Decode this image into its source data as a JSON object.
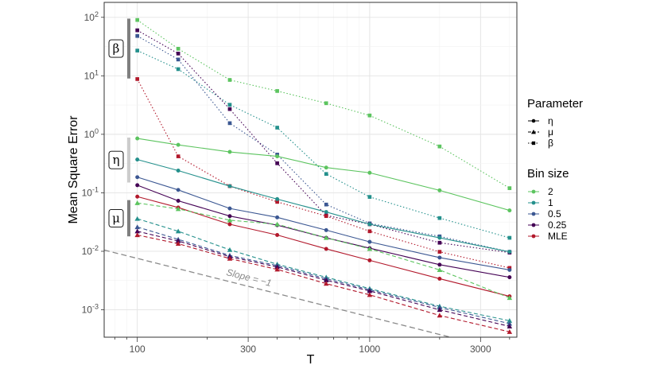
{
  "chart_data": {
    "type": "line",
    "title": "",
    "xlabel": "T",
    "ylabel": "Mean Square Error",
    "x_scale": "log",
    "y_scale": "log",
    "xlim": [
      72,
      4300
    ],
    "ylim": [
      0.00034,
      180
    ],
    "x_ticks": [
      100,
      300,
      1000,
      3000
    ],
    "x_tick_labels": [
      "100",
      "300",
      "1000",
      "3000"
    ],
    "y_ticks": [
      0.001,
      0.01,
      0.1,
      1,
      10,
      100
    ],
    "y_tick_labels": [
      {
        "base": "10",
        "exp": "-3"
      },
      {
        "base": "10",
        "exp": "-2"
      },
      {
        "base": "10",
        "exp": "-1"
      },
      {
        "base": "10",
        "exp": "0"
      },
      {
        "base": "10",
        "exp": "1"
      },
      {
        "base": "10",
        "exp": "2"
      }
    ],
    "grid": true,
    "legend_position": "right",
    "x": [
      100,
      150,
      250,
      400,
      650,
      1000,
      2000,
      4000
    ],
    "legend": {
      "parameter_title": "Parameter",
      "parameters": [
        {
          "label": "η",
          "marker": "circle",
          "dash": "solid"
        },
        {
          "label": "μ",
          "marker": "triangle",
          "dash": "dashed"
        },
        {
          "label": "β",
          "marker": "square",
          "dash": "dotted"
        }
      ],
      "bin_title": "Bin size",
      "bins": [
        {
          "label": "2",
          "color": "#5cc45f"
        },
        {
          "label": "1",
          "color": "#24908c"
        },
        {
          "label": "0.5",
          "color": "#3b5792"
        },
        {
          "label": "0.25",
          "color": "#440154"
        },
        {
          "label": "MLE",
          "color": "#b2182b"
        }
      ]
    },
    "group_labels": [
      {
        "label": "β",
        "range": [
          9,
          95
        ],
        "color": "#7f7f7f"
      },
      {
        "label": "η",
        "range": [
          0.15,
          0.88
        ],
        "color": "#cccccc"
      },
      {
        "label": "μ",
        "range": [
          0.018,
          0.075
        ],
        "color": "#7f7f7f"
      }
    ],
    "reference_line": {
      "label": "Slope = −1",
      "points": [
        [
          72,
          0.0105
        ],
        [
          4300,
          0.000176
        ]
      ],
      "color": "#8a8a8a"
    },
    "series": [
      {
        "param": "β",
        "bin": "2",
        "values": [
          90,
          29,
          8.5,
          5.5,
          3.4,
          2.1,
          0.62,
          0.12
        ]
      },
      {
        "param": "β",
        "bin": "1",
        "values": [
          27,
          13,
          3.2,
          1.3,
          0.21,
          0.085,
          0.037,
          0.017
        ]
      },
      {
        "param": "β",
        "bin": "0.5",
        "values": [
          48,
          19,
          1.55,
          0.45,
          0.063,
          0.03,
          0.018,
          0.0098
        ]
      },
      {
        "param": "β",
        "bin": "0.25",
        "values": [
          60,
          24,
          2.7,
          0.32,
          0.041,
          0.029,
          0.014,
          0.0095
        ]
      },
      {
        "param": "β",
        "bin": "MLE",
        "values": [
          8.8,
          0.42,
          0.13,
          0.07,
          0.04,
          0.022,
          0.0098,
          0.0052
        ]
      },
      {
        "param": "η",
        "bin": "2",
        "values": [
          0.85,
          0.66,
          0.5,
          0.42,
          0.27,
          0.22,
          0.11,
          0.05
        ]
      },
      {
        "param": "η",
        "bin": "1",
        "values": [
          0.37,
          0.24,
          0.13,
          0.078,
          0.047,
          0.029,
          0.017,
          0.0098
        ]
      },
      {
        "param": "η",
        "bin": "0.5",
        "values": [
          0.185,
          0.112,
          0.054,
          0.038,
          0.023,
          0.0145,
          0.0078,
          0.0048
        ]
      },
      {
        "param": "η",
        "bin": "0.25",
        "values": [
          0.135,
          0.073,
          0.04,
          0.028,
          0.017,
          0.0113,
          0.0059,
          0.0036
        ]
      },
      {
        "param": "η",
        "bin": "MLE",
        "values": [
          0.086,
          0.056,
          0.029,
          0.019,
          0.011,
          0.007,
          0.0034,
          0.0017
        ]
      },
      {
        "param": "μ",
        "bin": "2",
        "values": [
          0.067,
          0.053,
          0.034,
          0.029,
          0.017,
          0.011,
          0.0048,
          0.0016
        ]
      },
      {
        "param": "μ",
        "bin": "1",
        "values": [
          0.036,
          0.022,
          0.0106,
          0.006,
          0.0036,
          0.0023,
          0.00115,
          0.00065
        ]
      },
      {
        "param": "μ",
        "bin": "0.5",
        "values": [
          0.026,
          0.016,
          0.0085,
          0.0057,
          0.0034,
          0.0022,
          0.0011,
          0.00058
        ]
      },
      {
        "param": "μ",
        "bin": "0.25",
        "values": [
          0.022,
          0.015,
          0.0081,
          0.0054,
          0.0032,
          0.0021,
          0.001,
          0.00052
        ]
      },
      {
        "param": "μ",
        "bin": "MLE",
        "values": [
          0.019,
          0.0135,
          0.0075,
          0.0049,
          0.0028,
          0.0018,
          0.0008,
          0.00042
        ]
      }
    ]
  }
}
